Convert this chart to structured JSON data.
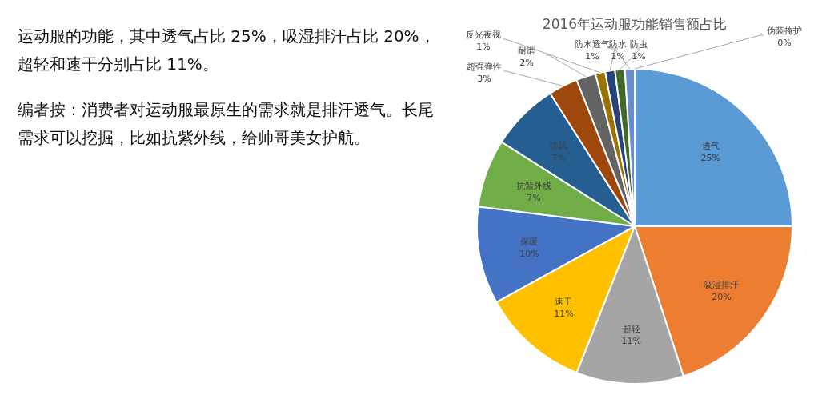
{
  "chart_data": {
    "type": "pie",
    "title": "2016年运动服功能销售额占比",
    "categories": [
      "透气",
      "吸湿排汗",
      "超轻",
      "速干",
      "保暖",
      "抗紫外线",
      "防风",
      "超强弹性",
      "耐磨",
      "反光夜视",
      "防水透气",
      "防水",
      "防虫",
      "伪装掩护"
    ],
    "values": [
      25,
      20,
      11,
      11,
      10,
      7,
      7,
      3,
      2,
      1,
      1,
      1,
      1,
      0
    ],
    "colors": [
      "#5b9bd5",
      "#ed7d31",
      "#a5a5a5",
      "#ffc000",
      "#4472c4",
      "#70ad47",
      "#255e91",
      "#9e480e",
      "#636363",
      "#997300",
      "#264478",
      "#43682b",
      "#698ed0",
      "#f1975a"
    ],
    "value_labels": [
      "25%",
      "20%",
      "11%",
      "11%",
      "10%",
      "7%",
      "7%",
      "3%",
      "2%",
      "1%",
      "1%",
      "1%",
      "1%",
      "0%"
    ],
    "annotations": [
      "运动服的功能，其中透气占比 25%，吸湿排汗占比 20%，超轻和速干分别占比 11%。",
      "编者按：消费者对运动服最原生的需求就是排汗透气。长尾需求可以挖掘，比如抗紫外线，给帅哥美女护航。"
    ]
  }
}
